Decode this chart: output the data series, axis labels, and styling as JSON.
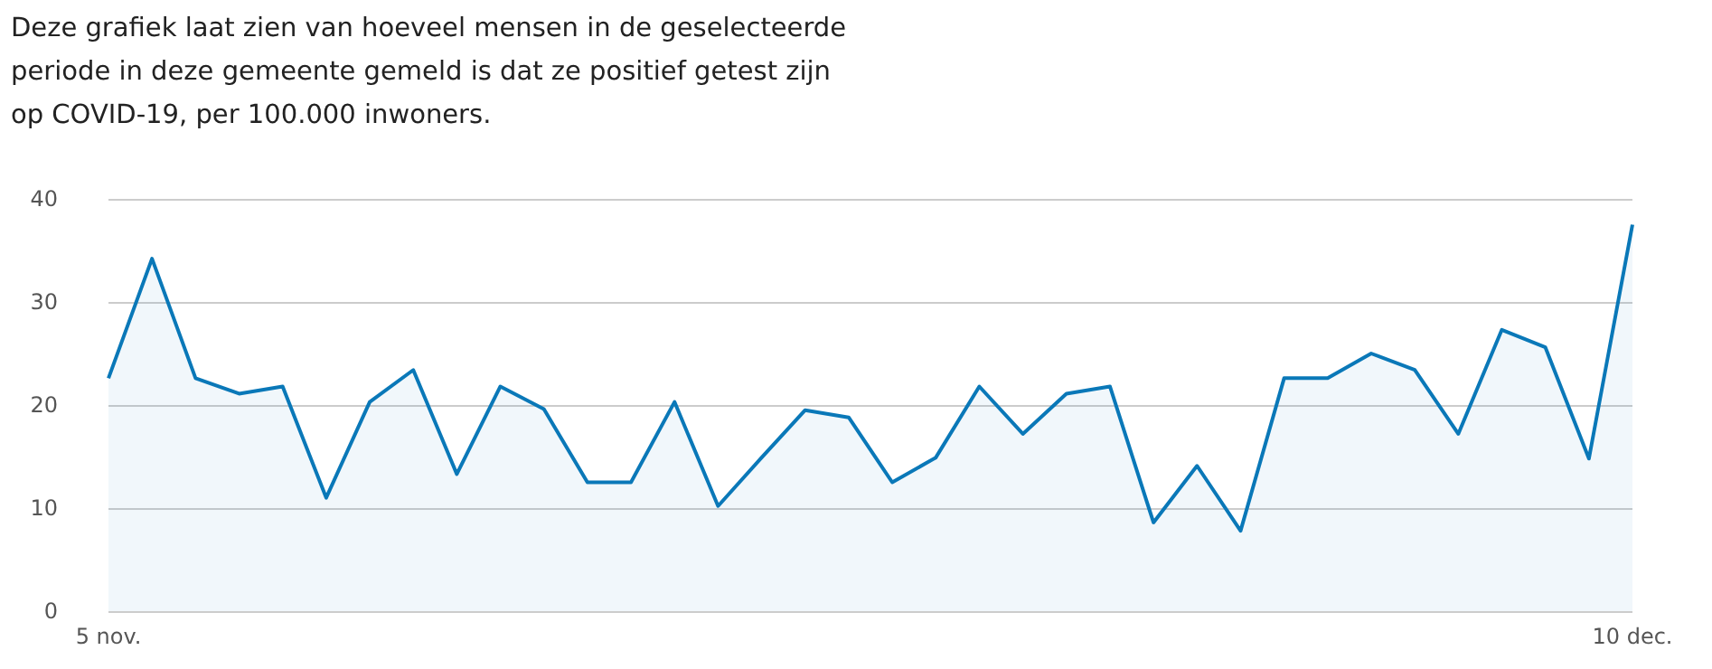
{
  "chart_data": {
    "type": "area",
    "title": "Deze grafiek laat zien van hoeveel mensen in de geselecteerde periode in deze gemeente gemeld is dat ze positief getest zijn op COVID-19, per 100.000 inwoners.",
    "categories": [
      "5 nov.",
      null,
      null,
      null,
      null,
      null,
      null,
      null,
      null,
      null,
      null,
      null,
      null,
      null,
      null,
      null,
      null,
      null,
      null,
      null,
      null,
      null,
      null,
      null,
      null,
      null,
      null,
      null,
      null,
      null,
      null,
      null,
      null,
      null,
      null,
      "10 dec."
    ],
    "series": [
      {
        "color": "#0a78b8",
        "values": [
          22.6,
          34.2,
          22.6,
          21.1,
          21.8,
          11,
          20.3,
          23.4,
          13.3,
          21.8,
          19.6,
          12.5,
          12.5,
          20.3,
          10.2,
          14.9,
          19.5,
          18.8,
          12.5,
          14.9,
          21.8,
          17.2,
          21.1,
          21.8,
          8.6,
          14.1,
          7.8,
          22.6,
          22.6,
          25,
          23.4,
          17.2,
          27.3,
          25.6,
          14.8,
          37.5
        ]
      }
    ],
    "ylim": [
      0,
      40
    ],
    "yticks": [
      0,
      10,
      20,
      30,
      40
    ],
    "grid": "y",
    "marker": "none"
  }
}
